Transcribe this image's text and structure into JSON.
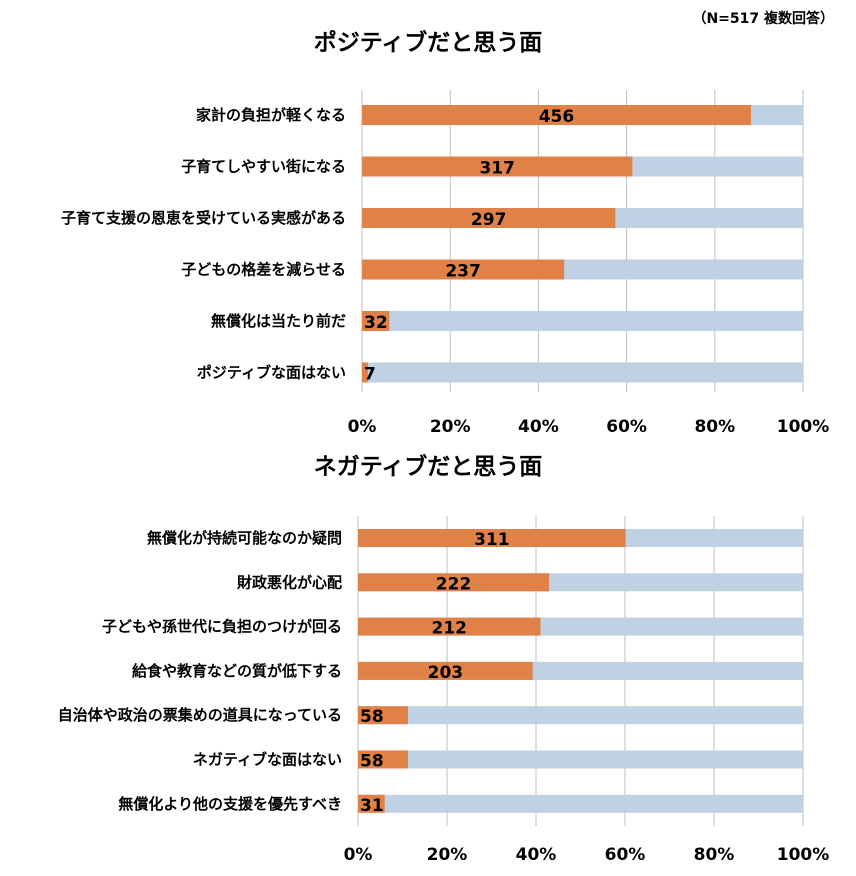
{
  "note": "（N=517 複数回答）",
  "colors": {
    "value_bar": "#E08248",
    "remainder_bar": "#BFD1E3",
    "grid": "#BFBFBF"
  },
  "chart_data": [
    {
      "type": "bar",
      "orientation": "horizontal",
      "stacked": "percent",
      "title": "ポジティブだと思う面",
      "total": 517,
      "categories": [
        "家計の負担が軽くなる",
        "子育てしやすい街になる",
        "子育て支援の恩恵を受けている実感がある",
        "子どもの格差を減らせる",
        "無償化は当たり前だ",
        "ポジティブな面はない"
      ],
      "values": [
        456,
        317,
        297,
        237,
        32,
        7
      ],
      "xticks": [
        "0%",
        "20%",
        "40%",
        "60%",
        "80%",
        "100%"
      ],
      "xlim": [
        0,
        100
      ],
      "grid": true
    },
    {
      "type": "bar",
      "orientation": "horizontal",
      "stacked": "percent",
      "title": "ネガティブだと思う面",
      "total": 517,
      "categories": [
        "無償化が持続可能なのか疑問",
        "財政悪化が心配",
        "子どもや孫世代に負担のつけが回る",
        "給食や教育などの質が低下する",
        "自治体や政治の票集めの道具になっている",
        "ネガティブな面はない",
        "無償化より他の支援を優先すべき"
      ],
      "values": [
        311,
        222,
        212,
        203,
        58,
        58,
        31
      ],
      "xticks": [
        "0%",
        "20%",
        "40%",
        "60%",
        "80%",
        "100%"
      ],
      "xlim": [
        0,
        100
      ],
      "grid": true
    }
  ]
}
